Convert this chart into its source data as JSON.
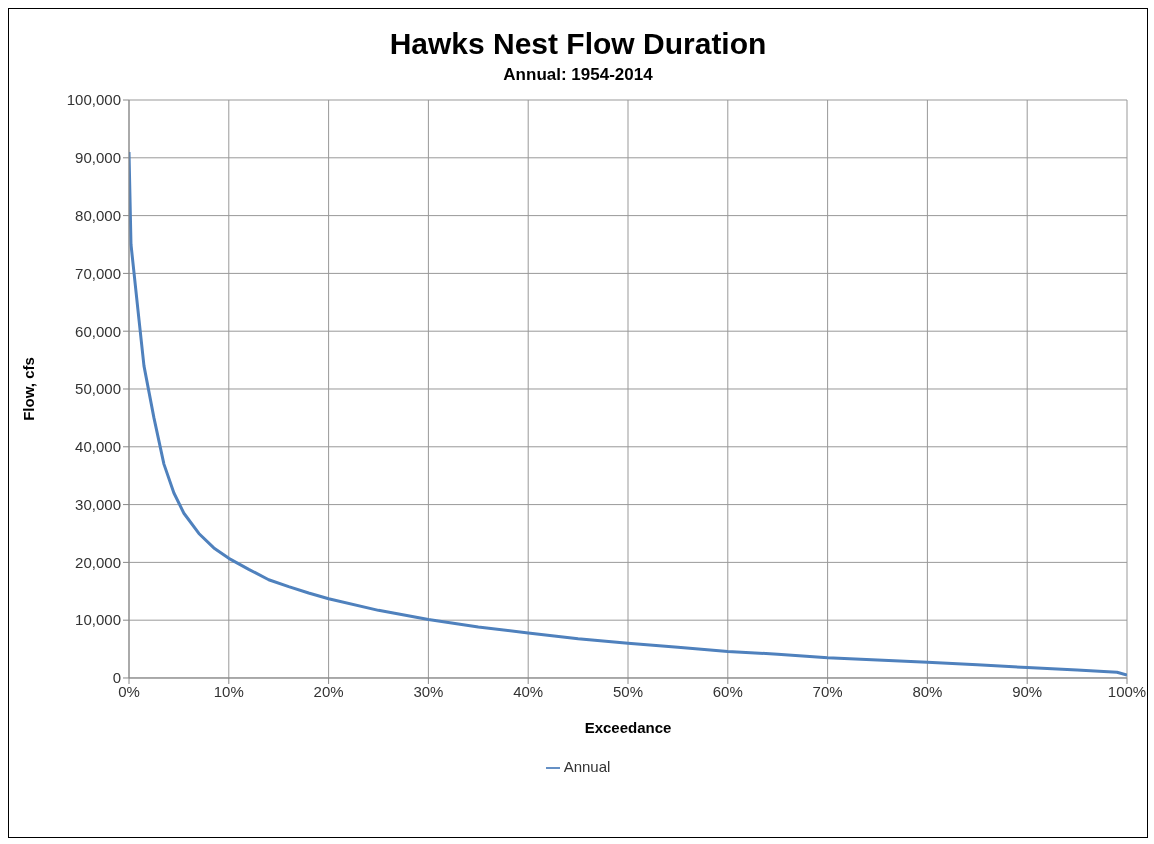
{
  "chart_data": {
    "type": "line",
    "title": "Hawks Nest Flow Duration",
    "subtitle": "Annual: 1954-2014",
    "xlabel": "Exceedance",
    "ylabel": "Flow, cfs",
    "x": [
      0,
      0.2,
      1,
      1.5,
      2.5,
      3.5,
      4.5,
      5.5,
      7,
      8.5,
      10,
      12,
      14,
      16,
      18,
      20,
      25,
      30,
      35,
      40,
      45,
      50,
      55,
      60,
      65,
      70,
      75,
      80,
      85,
      90,
      95,
      99,
      100
    ],
    "series": [
      {
        "name": "Annual",
        "color": "#4f81bd",
        "values": [
          91000,
          75000,
          62000,
          54000,
          45000,
          37000,
          32000,
          28500,
          25000,
          22500,
          20700,
          18800,
          17000,
          15800,
          14700,
          13700,
          11700,
          10100,
          8800,
          7800,
          6800,
          6000,
          5300,
          4600,
          4100,
          3500,
          3100,
          2700,
          2300,
          1800,
          1400,
          1000,
          500
        ]
      }
    ],
    "xlim": [
      0,
      100
    ],
    "xticks": [
      {
        "value": 0,
        "label": "0%"
      },
      {
        "value": 10,
        "label": "10%"
      },
      {
        "value": 20,
        "label": "20%"
      },
      {
        "value": 30,
        "label": "30%"
      },
      {
        "value": 40,
        "label": "40%"
      },
      {
        "value": 50,
        "label": "50%"
      },
      {
        "value": 60,
        "label": "60%"
      },
      {
        "value": 70,
        "label": "70%"
      },
      {
        "value": 80,
        "label": "80%"
      },
      {
        "value": 90,
        "label": "90%"
      },
      {
        "value": 100,
        "label": "100%"
      }
    ],
    "ylim": [
      0,
      100000
    ],
    "yticks": [
      {
        "value": 0,
        "label": "0"
      },
      {
        "value": 10000,
        "label": "10,000"
      },
      {
        "value": 20000,
        "label": "20,000"
      },
      {
        "value": 30000,
        "label": "30,000"
      },
      {
        "value": 40000,
        "label": "40,000"
      },
      {
        "value": 50000,
        "label": "50,000"
      },
      {
        "value": 60000,
        "label": "60,000"
      },
      {
        "value": 70000,
        "label": "70,000"
      },
      {
        "value": 80000,
        "label": "80,000"
      },
      {
        "value": 90000,
        "label": "90,000"
      },
      {
        "value": 100000,
        "label": "100,000"
      }
    ],
    "grid": true,
    "legend": "bottom",
    "marker": "none",
    "line_style": "solid"
  }
}
